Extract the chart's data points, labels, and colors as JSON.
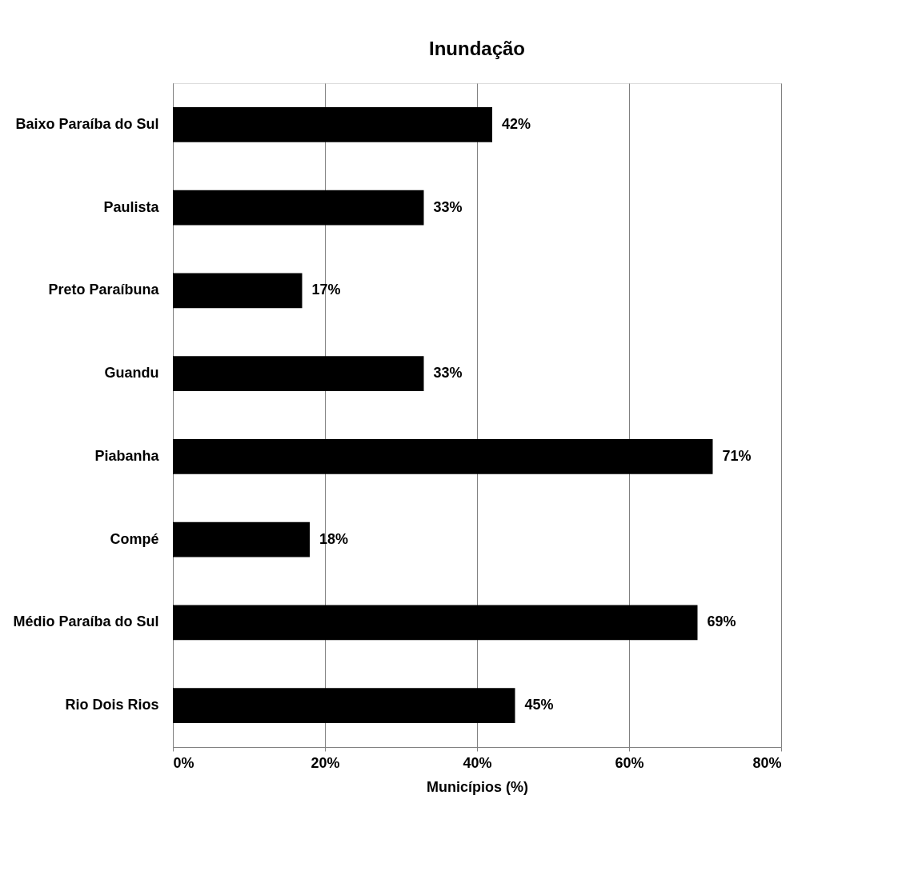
{
  "chart_data": {
    "type": "bar",
    "orientation": "horizontal",
    "title": "Inundação",
    "xlabel": "Municípios (%)",
    "categories": [
      "Baixo Paraíba do Sul",
      "Paulista",
      "Preto Paraíbuna",
      "Guandu",
      "Piabanha",
      "Compé",
      "Médio Paraíba do Sul",
      "Rio Dois Rios"
    ],
    "values": [
      42,
      33,
      17,
      33,
      71,
      18,
      69,
      45
    ],
    "value_labels": [
      "42%",
      "33%",
      "17%",
      "33%",
      "71%",
      "18%",
      "69%",
      "45%"
    ],
    "color": "#000000",
    "xlim": [
      0,
      80
    ],
    "xticks": [
      {
        "value": 0,
        "label": "0%"
      },
      {
        "value": 20,
        "label": "20%"
      },
      {
        "value": 40,
        "label": "40%"
      },
      {
        "value": 60,
        "label": "60%"
      },
      {
        "value": 80,
        "label": "80%"
      }
    ],
    "grid": "x"
  }
}
